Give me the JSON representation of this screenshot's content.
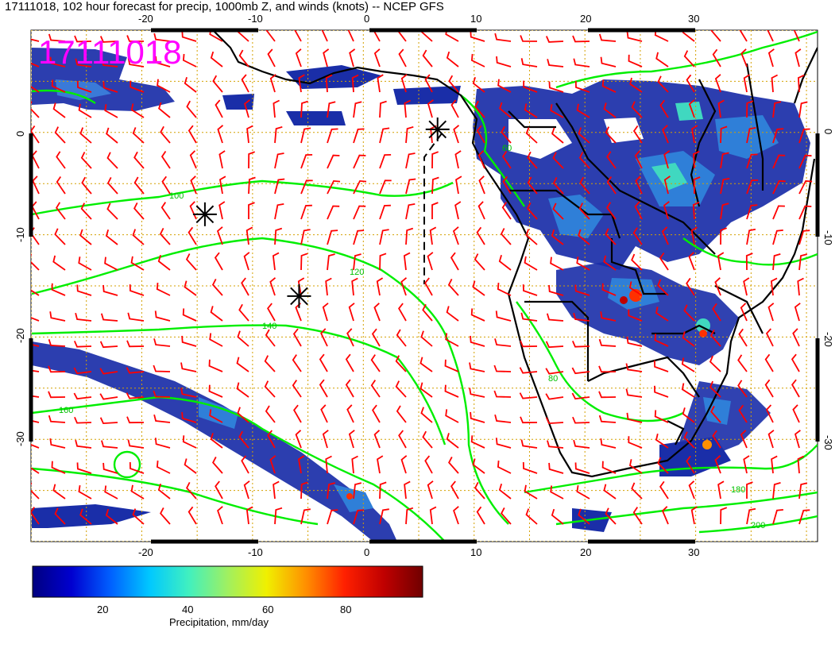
{
  "title": "17111018, 102 hour forecast for precip, 1000mb Z, and winds (knots) -- NCEP GFS",
  "stamp": "17111018",
  "map": {
    "lon_min": -30,
    "lon_max": 41,
    "lat_min": -40,
    "lat_max": 10,
    "lon_ticks_bottom": [
      "-20",
      "-10",
      "0",
      "10",
      "20",
      "30"
    ],
    "lon_ticks_top": [
      "-20",
      "-10",
      "0",
      "10",
      "20",
      "30"
    ],
    "lat_ticks_left": [
      "0",
      "-10",
      "-20",
      "-30"
    ],
    "lat_ticks_right": [
      "0",
      "-10",
      "-20",
      "-30"
    ],
    "contour_labels": [
      "60",
      "80",
      "100",
      "120",
      "140",
      "160",
      "180",
      "200"
    ],
    "markers": [
      {
        "lon": 6.7,
        "lat": 0.3
      },
      {
        "lon": -14.3,
        "lat": -8.0
      },
      {
        "lon": -5.8,
        "lat": -16.0
      }
    ]
  },
  "colorbar": {
    "label": "Precipitation, mm/day",
    "ticks": [
      "20",
      "40",
      "60",
      "80"
    ],
    "tick_values": [
      20,
      40,
      60,
      80
    ],
    "min": 0,
    "max": 100,
    "colors": [
      "#000080",
      "#0000d0",
      "#0060ff",
      "#00c8ff",
      "#40f0c0",
      "#a0f060",
      "#f0f000",
      "#ff9000",
      "#ff2000",
      "#c00000",
      "#700000"
    ]
  },
  "colors": {
    "barb": "#ff0000",
    "contour": "#00ee00",
    "grid": "#d4a000",
    "stamp": "#ff00ff",
    "border": "#000000"
  }
}
